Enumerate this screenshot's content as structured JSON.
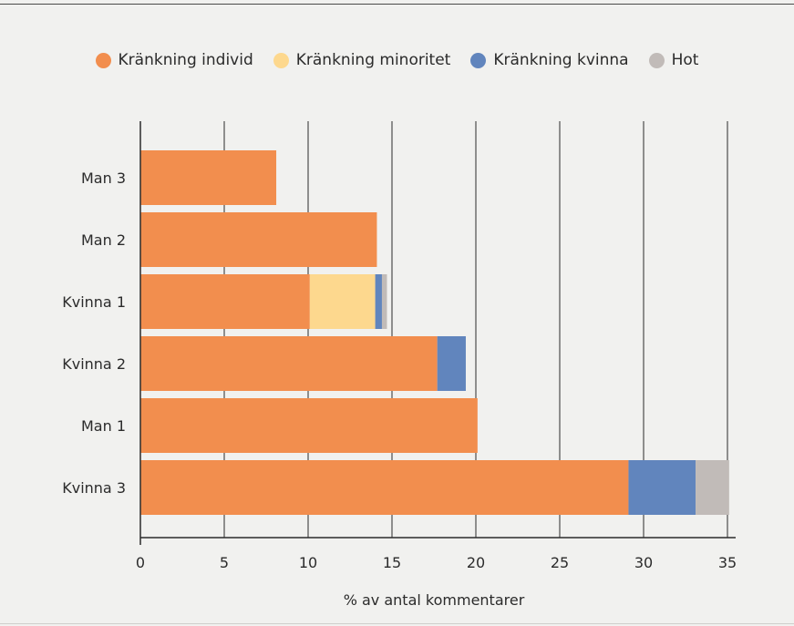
{
  "chart_data": {
    "type": "bar",
    "orientation": "horizontal",
    "stacked": true,
    "categories": [
      "Man 3",
      "Man 2",
      "Kvinna 1",
      "Kvinna 2",
      "Man 1",
      "Kvinna 3"
    ],
    "series": [
      {
        "name": "Kränkning individ",
        "color": "#f28e4e",
        "values": [
          8.1,
          14.1,
          10.1,
          17.7,
          20.1,
          29.1
        ]
      },
      {
        "name": "Kränkning minoritet",
        "color": "#fdd88e",
        "values": [
          0,
          0,
          3.9,
          0,
          0,
          0
        ]
      },
      {
        "name": "Kränkning kvinna",
        "color": "#6185bd",
        "values": [
          0,
          0,
          0.4,
          1.7,
          0,
          4.0
        ]
      },
      {
        "name": "Hot",
        "color": "#c1bbb8",
        "values": [
          0,
          0,
          0.3,
          0,
          0,
          2.0
        ]
      }
    ],
    "xlabel": "% av antal kommentarer",
    "ylabel": "",
    "xlim": [
      0,
      35
    ],
    "xticks": [
      0,
      5,
      10,
      15,
      20,
      25,
      30,
      35
    ],
    "grid": "vertical",
    "legend_position": "top-center"
  }
}
